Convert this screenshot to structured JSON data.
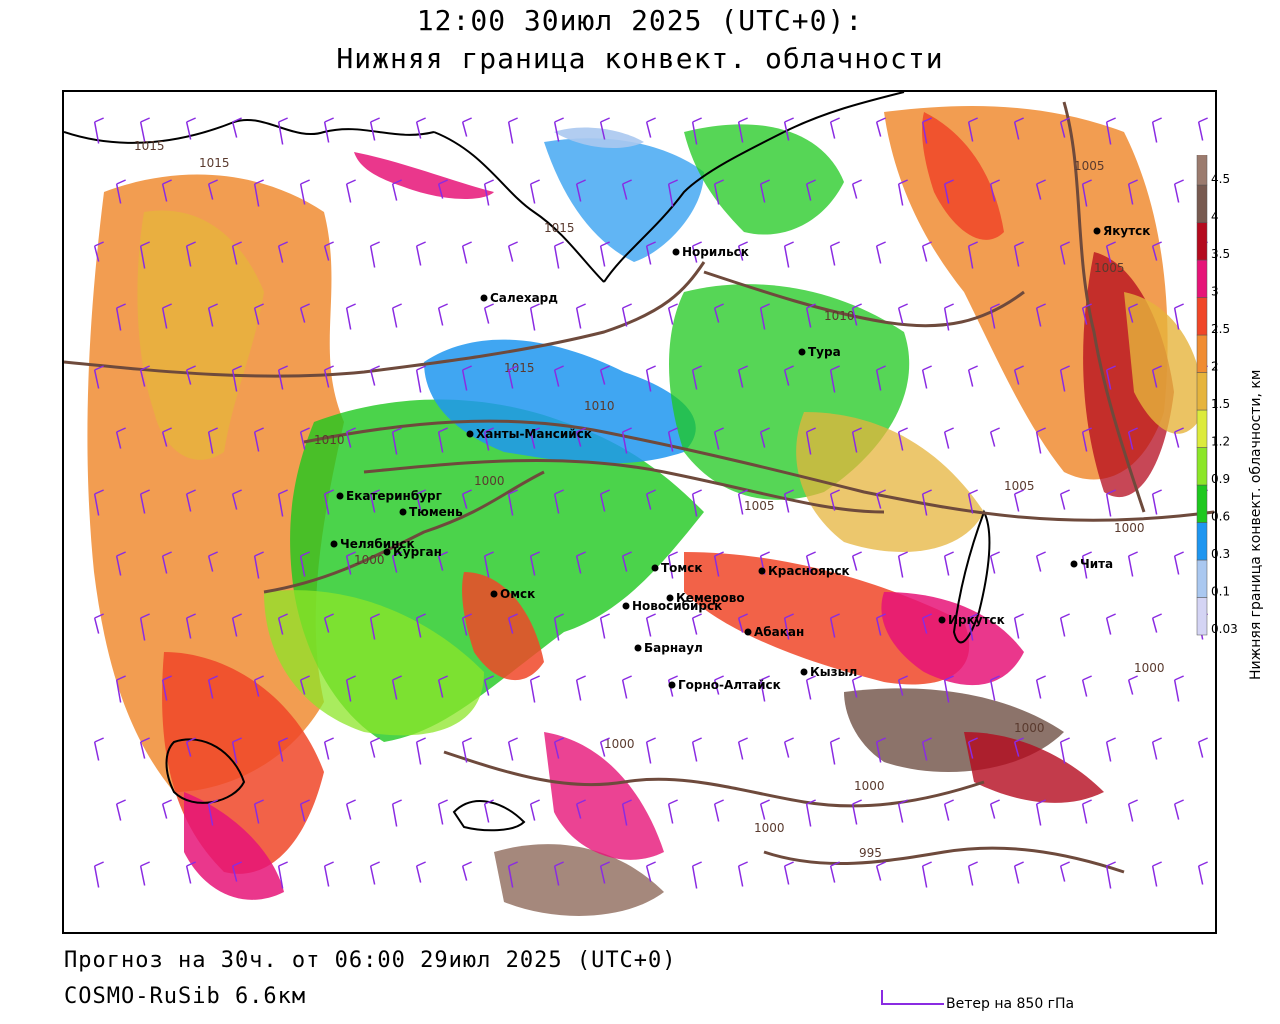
{
  "header": {
    "time_line": "12:00 30июл 2025 (UTC+0):",
    "parameter": "Нижняя граница конвект. облачности"
  },
  "footer": {
    "forecast": "Прогноз на 30ч. от 06:00 29июл 2025 (UTC+0)",
    "model": "COSMO-RuSib 6.6км",
    "wind_legend": "Ветер на 850 гПа"
  },
  "legend": {
    "title": "Нижняя граница конвект. облачности, км",
    "levels": [
      {
        "value": "0.03",
        "color": "#d4d4f4"
      },
      {
        "value": "0.1",
        "color": "#aac8f0"
      },
      {
        "value": "0.3",
        "color": "#1e96f0"
      },
      {
        "value": "0.6",
        "color": "#1ec81e"
      },
      {
        "value": "0.9",
        "color": "#8ce628"
      },
      {
        "value": "1.2",
        "color": "#dceb3c"
      },
      {
        "value": "1.5",
        "color": "#e6b43c"
      },
      {
        "value": "2",
        "color": "#f08c32"
      },
      {
        "value": "2.5",
        "color": "#f04628"
      },
      {
        "value": "3",
        "color": "#e61478"
      },
      {
        "value": "3.5",
        "color": "#b40a1e"
      },
      {
        "value": "4",
        "color": "#785a50"
      },
      {
        "value": "4.5",
        "color": "#9b7b6e"
      }
    ]
  },
  "cities": [
    {
      "name": "Норильск"
    },
    {
      "name": "Якутск"
    },
    {
      "name": "Салехард"
    },
    {
      "name": "Тура"
    },
    {
      "name": "Ханты-Мансийск"
    },
    {
      "name": "Екатеринбург"
    },
    {
      "name": "Тюмень"
    },
    {
      "name": "Челябинск"
    },
    {
      "name": "Курган"
    },
    {
      "name": "Омск"
    },
    {
      "name": "Новосибирск"
    },
    {
      "name": "Томск"
    },
    {
      "name": "Кемерово"
    },
    {
      "name": "Красноярск"
    },
    {
      "name": "Барнаул"
    },
    {
      "name": "Абакан"
    },
    {
      "name": "Горно-Алтайск"
    },
    {
      "name": "Кызыл"
    },
    {
      "name": "Иркутск"
    },
    {
      "name": "Чита"
    }
  ],
  "isobar_labels": [
    "1015",
    "1015",
    "1015",
    "1015",
    "1010",
    "1010",
    "1010",
    "1005",
    "1005",
    "1005",
    "1000",
    "1000",
    "1000",
    "1000",
    "1000",
    "1000",
    "1000",
    "995",
    "1005",
    "1000"
  ],
  "colors": {
    "isobar": "#6e4a3c",
    "wind_barb": "#8a2be2",
    "border": "#000000"
  }
}
